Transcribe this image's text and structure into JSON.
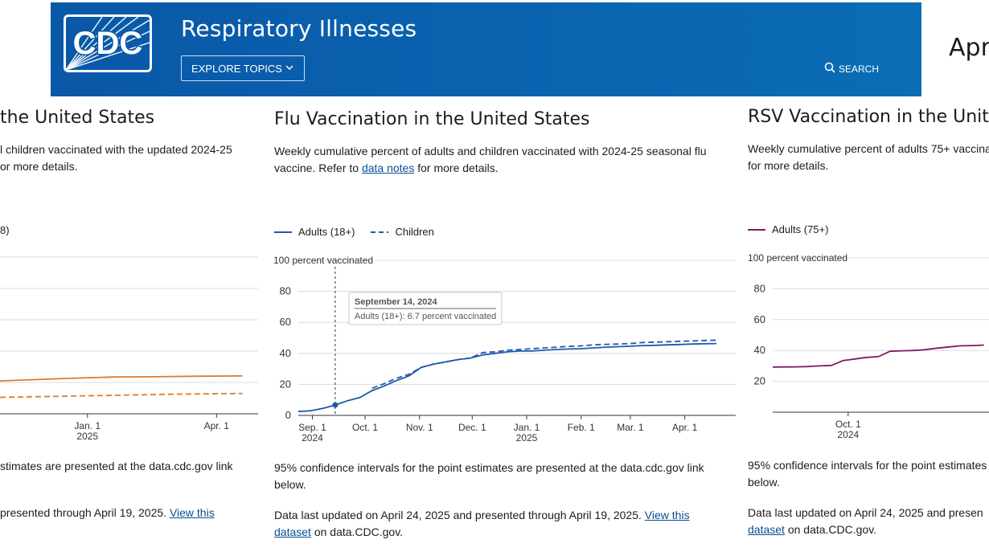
{
  "header": {
    "logo_text": "CDC",
    "site_title": "Respiratory Illnesses",
    "explore_label": "EXPLORE TOPICS",
    "search_label": "SEARCH",
    "brand_color": "#0a5ea9"
  },
  "date_fragment": "Apri",
  "left_panel": {
    "title_fragment": "the United States",
    "desc_line1": "l children vaccinated with the updated 2024-25",
    "desc_line2": "or more details.",
    "legend_fragment": "8)",
    "x_ticks": [
      {
        "label": "Jan. 1",
        "year": "2025"
      },
      {
        "label": "Apr. 1",
        "year": ""
      }
    ],
    "note1": "stimates are presented at the data.cdc.gov link",
    "note2_text": "presented through April 19, 2025.",
    "note2_link": "View this",
    "series_colors": {
      "adults": "#e07b24",
      "children": "#e07b24"
    }
  },
  "flu_panel": {
    "title": "Flu Vaccination in the United States",
    "desc_text1": "Weekly cumulative percent of adults and children vaccinated with 2024-25 seasonal flu vaccine. Refer to",
    "desc_link": "data notes",
    "desc_text2": "for more details.",
    "notes_line1": "95% confidence intervals for the point estimates are presented at the data.cdc.gov link below.",
    "updated_text": "Data last updated on April 24, 2025 and presented through April 19, 2025.",
    "updated_link1": "View this",
    "updated_link2": "dataset",
    "updated_tail": "on data.CDC.gov.",
    "tooltip": {
      "date": "September 14, 2024",
      "value_text": "Adults (18+): 6.7 percent vaccinated"
    }
  },
  "rsv_panel": {
    "title": "RSV Vaccination in the United",
    "desc_line1": "Weekly cumulative percent of adults 75+ vaccina",
    "desc_line2": "for more details.",
    "legend_label": "Adults (75+)",
    "y_top_label": "100 percent vaccinated",
    "y_ticks": [
      "80",
      "60",
      "40",
      "20"
    ],
    "x_ticks": [
      {
        "label": "Oct. 1",
        "year": "2024"
      }
    ],
    "note1": "95% confidence intervals for the point estimates",
    "note2": "below.",
    "updated_text": "Data last updated on April 24, 2025 and presen",
    "updated_link": "dataset",
    "updated_tail": "on data.CDC.gov.",
    "series_color": "#7b1c64"
  },
  "chart_data": [
    {
      "type": "line",
      "title": "Flu Vaccination in the United States",
      "ylabel": "100 percent vaccinated",
      "ylim": [
        0,
        100
      ],
      "y_ticks": [
        "0",
        "20",
        "40",
        "60",
        "80"
      ],
      "x_ticks": [
        {
          "label": "Sep. 1",
          "year": "2024"
        },
        {
          "label": "Oct. 1",
          "year": ""
        },
        {
          "label": "Nov. 1",
          "year": ""
        },
        {
          "label": "Dec. 1",
          "year": ""
        },
        {
          "label": "Jan. 1",
          "year": "2025"
        },
        {
          "label": "Feb. 1",
          "year": ""
        },
        {
          "label": "Mar. 1",
          "year": ""
        },
        {
          "label": "Apr. 1",
          "year": ""
        }
      ],
      "legend_position": "top-left",
      "grid": true,
      "x": [
        "2024-08-24",
        "2024-08-31",
        "2024-09-07",
        "2024-09-14",
        "2024-09-21",
        "2024-09-28",
        "2024-10-05",
        "2024-10-12",
        "2024-10-19",
        "2024-10-26",
        "2024-11-02",
        "2024-11-09",
        "2024-11-16",
        "2024-11-23",
        "2024-11-30",
        "2024-12-07",
        "2024-12-14",
        "2024-12-21",
        "2024-12-28",
        "2025-01-04",
        "2025-01-11",
        "2025-01-18",
        "2025-01-25",
        "2025-02-01",
        "2025-02-08",
        "2025-02-15",
        "2025-02-22",
        "2025-03-01",
        "2025-03-08",
        "2025-03-15",
        "2025-03-22",
        "2025-03-29",
        "2025-04-05",
        "2025-04-12",
        "2025-04-19"
      ],
      "series": [
        {
          "name": "Adults (18+)",
          "style": "solid",
          "color": "#1f5aa8",
          "values": [
            2.5,
            3.0,
            4.5,
            6.7,
            9.5,
            11.5,
            16.0,
            19.0,
            22.5,
            25.5,
            31.0,
            33.0,
            34.5,
            36.0,
            37.0,
            39.0,
            40.0,
            41.0,
            41.5,
            41.5,
            42.0,
            42.5,
            42.8,
            43.0,
            43.5,
            44.0,
            44.3,
            44.6,
            45.0,
            45.2,
            45.5,
            45.7,
            46.0,
            46.2,
            46.3
          ]
        },
        {
          "name": "Children",
          "style": "dashed",
          "color": "#1f5aa8",
          "values": [
            null,
            null,
            null,
            null,
            null,
            null,
            17.5,
            20.5,
            24.0,
            26.5,
            31.0,
            33.0,
            34.5,
            36.0,
            37.0,
            40.5,
            41.0,
            42.0,
            42.5,
            43.0,
            43.5,
            44.0,
            44.5,
            44.8,
            45.5,
            45.8,
            46.0,
            46.3,
            47.0,
            47.2,
            47.5,
            47.8,
            48.0,
            48.3,
            48.5
          ]
        }
      ]
    },
    {
      "type": "line",
      "title": "RSV Vaccination in the United",
      "ylabel": "100 percent vaccinated",
      "ylim": [
        0,
        100
      ],
      "legend_position": "top-left",
      "grid": true,
      "x": [
        "2024-08-17",
        "2024-08-24",
        "2024-08-31",
        "2024-09-07",
        "2024-09-14",
        "2024-09-21",
        "2024-09-28",
        "2024-10-05",
        "2024-10-12",
        "2024-10-19",
        "2024-10-26",
        "2024-11-02",
        "2024-11-09",
        "2024-11-16",
        "2024-11-23",
        "2024-11-30",
        "2024-12-07",
        "2024-12-14",
        "2024-12-21"
      ],
      "series": [
        {
          "name": "Adults (75+)",
          "style": "solid",
          "color": "#7b1c64",
          "values": [
            29.2,
            29.3,
            29.4,
            29.6,
            30.0,
            30.3,
            33.5,
            34.5,
            35.5,
            36.0,
            39.5,
            39.8,
            40.0,
            40.5,
            41.5,
            42.3,
            43.0,
            43.2,
            43.5
          ]
        }
      ]
    }
  ]
}
